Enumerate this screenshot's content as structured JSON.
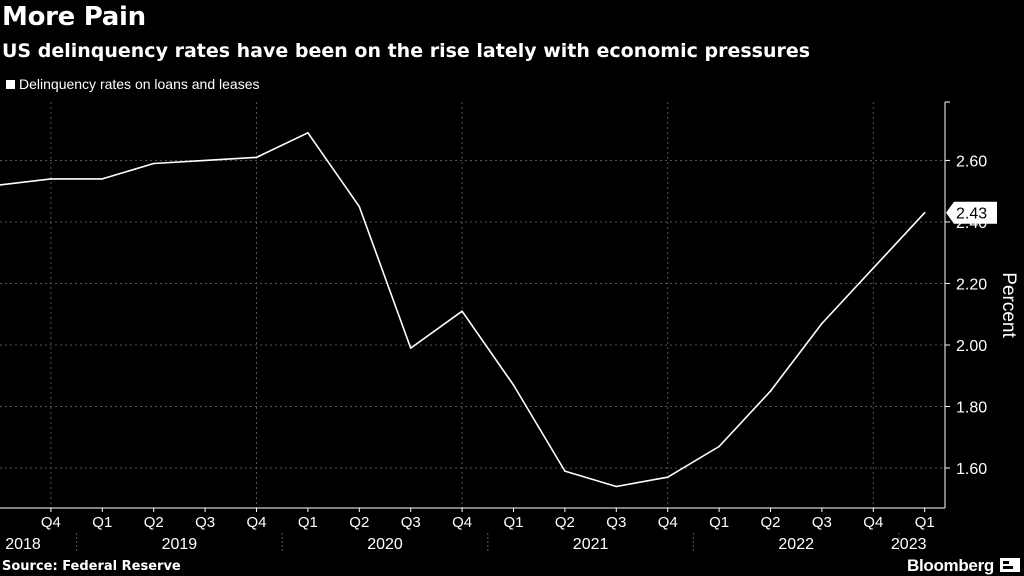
{
  "header": {
    "title": "More Pain",
    "subtitle": "US delinquency rates have been on the rise lately with economic pressures"
  },
  "legend": {
    "label": "Delinquency rates on loans and leases"
  },
  "footer": {
    "source": "Source: Federal Reserve",
    "brand": "Bloomberg"
  },
  "colors": {
    "background": "#000000",
    "line": "#ffffff",
    "grid": "#555555"
  },
  "chart_data": {
    "type": "line",
    "title": "More Pain",
    "subtitle": "US delinquency rates have been on the rise lately with economic pressures",
    "ylabel": "Percent",
    "ylim": [
      1.47,
      2.79
    ],
    "yticks": [
      1.6,
      1.8,
      2.0,
      2.2,
      2.4,
      2.6
    ],
    "ytick_labels": [
      "1.60",
      "1.80",
      "2.00",
      "2.20",
      "2.40",
      "2.60"
    ],
    "x": [
      "2018 Q3",
      "2018 Q4",
      "2019 Q1",
      "2019 Q2",
      "2019 Q3",
      "2019 Q4",
      "2020 Q1",
      "2020 Q2",
      "2020 Q3",
      "2020 Q4",
      "2021 Q1",
      "2021 Q2",
      "2021 Q3",
      "2021 Q4",
      "2022 Q1",
      "2022 Q2",
      "2022 Q3",
      "2022 Q4",
      "2023 Q1"
    ],
    "quarter_labels": [
      "Q4",
      "Q1",
      "Q2",
      "Q3",
      "Q4",
      "Q1",
      "Q2",
      "Q3",
      "Q4",
      "Q1",
      "Q2",
      "Q3",
      "Q4",
      "Q1",
      "Q2",
      "Q3",
      "Q4",
      "Q1"
    ],
    "years": [
      "2018",
      "2019",
      "2020",
      "2021",
      "2022",
      "2023"
    ],
    "series": [
      {
        "name": "Delinquency rates on loans and leases",
        "values": [
          2.52,
          2.54,
          2.54,
          2.59,
          2.6,
          2.61,
          2.69,
          2.45,
          1.99,
          2.11,
          1.87,
          1.59,
          1.54,
          1.57,
          1.67,
          1.85,
          2.07,
          2.25,
          2.43
        ]
      }
    ],
    "last_value_label": "2.43",
    "grid": true,
    "legend_position": "top-left"
  }
}
